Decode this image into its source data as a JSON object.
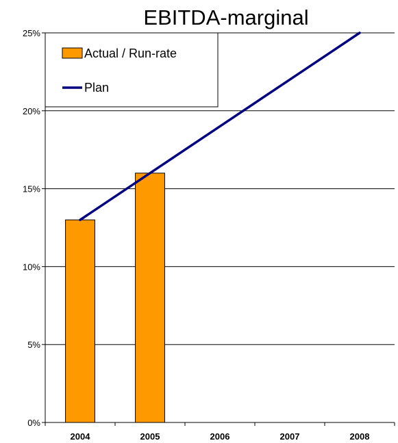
{
  "chart_data": {
    "type": "bar",
    "title": "EBITDA-marginal",
    "xlabel": "",
    "ylabel": "",
    "categories": [
      "2004",
      "2005",
      "2006",
      "2007",
      "2008"
    ],
    "ylim": [
      0,
      25
    ],
    "yticks": [
      0,
      5,
      10,
      15,
      20,
      25
    ],
    "ytick_labels": [
      "0%",
      "5%",
      "10%",
      "15%",
      "20%",
      "25%"
    ],
    "grid": true,
    "legend_position": "top-left",
    "series": [
      {
        "name": "Actual / Run-rate",
        "kind": "bar",
        "color": "#FF9900",
        "values": [
          13,
          16,
          null,
          null,
          null
        ]
      },
      {
        "name": "Plan",
        "kind": "line",
        "color": "#000080",
        "values": [
          13,
          16,
          19,
          22,
          25
        ]
      }
    ]
  }
}
